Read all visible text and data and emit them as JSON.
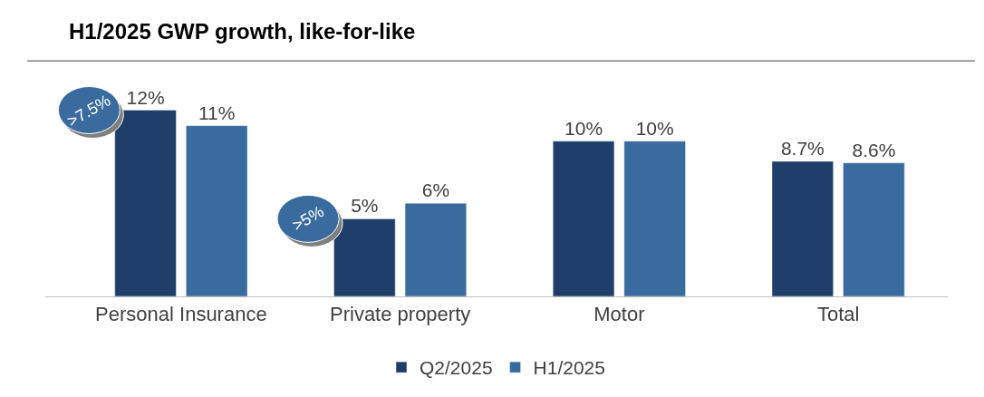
{
  "chart_data": {
    "type": "bar",
    "title": "H1/2025 GWP growth, like-for-like",
    "categories": [
      "Personal Insurance",
      "Private property",
      "Motor",
      "Total"
    ],
    "series": [
      {
        "name": "Q2/2025",
        "color": "#1f3f6a",
        "values": [
          12,
          5,
          10,
          8.7
        ],
        "value_labels": [
          "12%",
          "5%",
          "10%",
          "8.7%"
        ]
      },
      {
        "name": "H1/2025",
        "color": "#3a6b9e",
        "values": [
          11,
          6,
          10,
          8.6
        ],
        "value_labels": [
          "11%",
          "6%",
          "10%",
          "8.6%"
        ]
      }
    ],
    "annotations": [
      ">7.5%",
      ">5%"
    ],
    "legend": "bottom"
  }
}
